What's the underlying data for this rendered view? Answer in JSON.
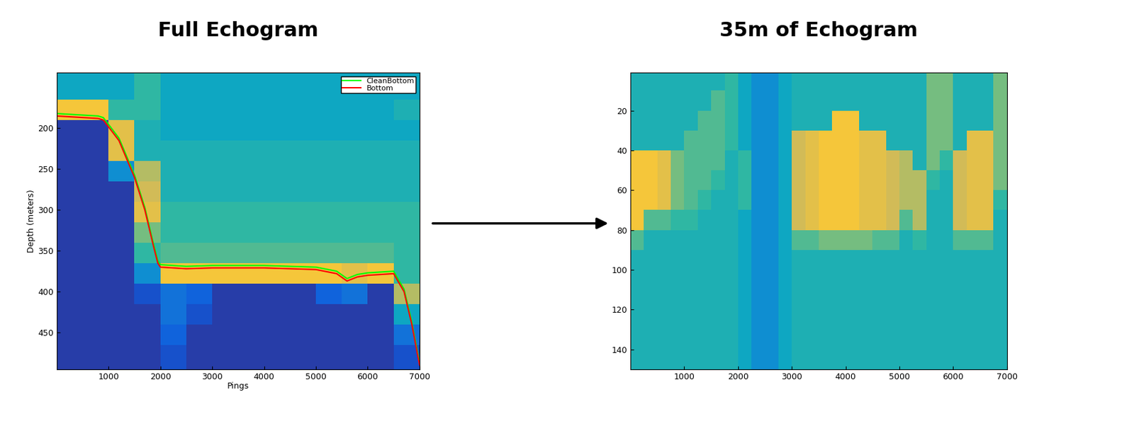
{
  "chart_data": [
    {
      "type": "heatmap",
      "title": "Full Echogram",
      "x_label": "Pings",
      "y_label": "Depth (meters)",
      "xlim": [
        0,
        7000
      ],
      "xticks": [
        1000,
        2000,
        3000,
        4000,
        5000,
        6000,
        7000
      ],
      "ylim": [
        495,
        132
      ],
      "yticks": [
        200,
        250,
        300,
        350,
        400,
        450
      ],
      "x_edges": [
        0,
        500,
        1000,
        1500,
        2000,
        2500,
        3000,
        3500,
        4000,
        4500,
        5000,
        5500,
        6000,
        6500,
        7000
      ],
      "y_edges": [
        132,
        165,
        190,
        215,
        240,
        265,
        290,
        315,
        340,
        365,
        390,
        415,
        440,
        465,
        495
      ],
      "cell_range": [
        0,
        1
      ],
      "cells": [
        [
          0.4,
          0.4,
          0.4,
          0.5,
          0.4,
          0.4,
          0.4,
          0.4,
          0.4,
          0.4,
          0.4,
          0.4,
          0.4,
          0.4
        ],
        [
          0.85,
          0.85,
          0.5,
          0.5,
          0.4,
          0.4,
          0.4,
          0.4,
          0.4,
          0.4,
          0.4,
          0.4,
          0.4,
          0.45
        ],
        [
          0.05,
          0.05,
          0.8,
          0.45,
          0.4,
          0.4,
          0.4,
          0.4,
          0.4,
          0.4,
          0.4,
          0.4,
          0.4,
          0.4
        ],
        [
          0.05,
          0.05,
          0.8,
          0.45,
          0.45,
          0.45,
          0.45,
          0.45,
          0.45,
          0.45,
          0.45,
          0.45,
          0.45,
          0.45
        ],
        [
          0.05,
          0.05,
          0.3,
          0.7,
          0.45,
          0.45,
          0.45,
          0.45,
          0.45,
          0.45,
          0.45,
          0.45,
          0.45,
          0.45
        ],
        [
          0.05,
          0.05,
          0.05,
          0.75,
          0.45,
          0.45,
          0.45,
          0.45,
          0.45,
          0.45,
          0.45,
          0.45,
          0.45,
          0.45
        ],
        [
          0.05,
          0.05,
          0.05,
          0.8,
          0.5,
          0.5,
          0.5,
          0.5,
          0.5,
          0.5,
          0.5,
          0.5,
          0.5,
          0.5
        ],
        [
          0.05,
          0.05,
          0.05,
          0.6,
          0.5,
          0.5,
          0.5,
          0.5,
          0.5,
          0.5,
          0.5,
          0.5,
          0.5,
          0.5
        ],
        [
          0.05,
          0.05,
          0.05,
          0.5,
          0.55,
          0.55,
          0.55,
          0.55,
          0.55,
          0.55,
          0.55,
          0.55,
          0.55,
          0.5
        ],
        [
          0.05,
          0.05,
          0.05,
          0.3,
          0.85,
          0.85,
          0.85,
          0.85,
          0.85,
          0.85,
          0.85,
          0.8,
          0.85,
          0.5
        ],
        [
          0.05,
          0.05,
          0.05,
          0.1,
          0.2,
          0.15,
          0.05,
          0.05,
          0.05,
          0.05,
          0.15,
          0.2,
          0.05,
          0.7
        ],
        [
          0.05,
          0.05,
          0.05,
          0.05,
          0.2,
          0.1,
          0.05,
          0.05,
          0.05,
          0.05,
          0.05,
          0.05,
          0.05,
          0.4
        ],
        [
          0.05,
          0.05,
          0.05,
          0.05,
          0.15,
          0.05,
          0.05,
          0.05,
          0.05,
          0.05,
          0.05,
          0.05,
          0.05,
          0.2
        ],
        [
          0.05,
          0.05,
          0.05,
          0.05,
          0.1,
          0.05,
          0.05,
          0.05,
          0.05,
          0.05,
          0.05,
          0.05,
          0.05,
          0.1
        ]
      ],
      "legend": "upper right",
      "series": [
        {
          "name": "CleanBottom",
          "color": "#00ff00",
          "x": [
            0,
            800,
            900,
            1200,
            1500,
            1700,
            1850,
            1950,
            2000,
            2500,
            3000,
            4000,
            5000,
            5400,
            5600,
            5800,
            6000,
            6500,
            6700,
            6850,
            7000
          ],
          "values": [
            182,
            185,
            187,
            212,
            257,
            297,
            337,
            362,
            367,
            369,
            368,
            368,
            370,
            375,
            384,
            379,
            377,
            375,
            397,
            437,
            487
          ]
        },
        {
          "name": "Bottom",
          "color": "#ff0000",
          "x": [
            0,
            800,
            900,
            1200,
            1500,
            1700,
            1850,
            1950,
            2000,
            2500,
            3000,
            4000,
            5000,
            5400,
            5600,
            5800,
            6000,
            6500,
            6700,
            6850,
            7000
          ],
          "values": [
            185,
            188,
            190,
            215,
            260,
            300,
            340,
            365,
            370,
            372,
            371,
            371,
            373,
            378,
            387,
            382,
            380,
            378,
            400,
            440,
            490
          ]
        }
      ]
    },
    {
      "type": "heatmap",
      "title": "35m of Echogram",
      "xlim": [
        0,
        7000
      ],
      "xticks": [
        1000,
        2000,
        3000,
        4000,
        5000,
        6000,
        7000
      ],
      "ylim": [
        150,
        1
      ],
      "yticks": [
        20,
        40,
        60,
        80,
        100,
        120,
        140
      ],
      "x_edges": [
        0,
        250,
        500,
        750,
        1000,
        1250,
        1500,
        1750,
        2000,
        2250,
        2500,
        2750,
        3000,
        3250,
        3500,
        3750,
        4000,
        4250,
        4500,
        4750,
        5000,
        5250,
        5500,
        5750,
        6000,
        6250,
        6500,
        6750,
        7000
      ],
      "y_edges": [
        1,
        10,
        20,
        30,
        40,
        50,
        60,
        70,
        80,
        90,
        100,
        110,
        120,
        130,
        140,
        150
      ],
      "cell_range": [
        0,
        1
      ],
      "cells": [
        [
          0.45,
          0.45,
          0.45,
          0.45,
          0.45,
          0.45,
          0.45,
          0.5,
          0.4,
          0.3,
          0.3,
          0.4,
          0.45,
          0.45,
          0.45,
          0.45,
          0.45,
          0.45,
          0.45,
          0.45,
          0.45,
          0.45,
          0.6,
          0.6,
          0.45,
          0.45,
          0.45,
          0.6
        ],
        [
          0.45,
          0.45,
          0.45,
          0.45,
          0.45,
          0.45,
          0.55,
          0.5,
          0.4,
          0.3,
          0.3,
          0.4,
          0.45,
          0.45,
          0.45,
          0.45,
          0.45,
          0.45,
          0.45,
          0.45,
          0.45,
          0.45,
          0.6,
          0.6,
          0.45,
          0.45,
          0.45,
          0.6
        ],
        [
          0.45,
          0.45,
          0.45,
          0.45,
          0.45,
          0.55,
          0.55,
          0.5,
          0.4,
          0.3,
          0.3,
          0.4,
          0.45,
          0.45,
          0.45,
          0.85,
          0.85,
          0.45,
          0.45,
          0.45,
          0.45,
          0.45,
          0.6,
          0.6,
          0.45,
          0.45,
          0.45,
          0.6
        ],
        [
          0.45,
          0.45,
          0.45,
          0.45,
          0.55,
          0.55,
          0.55,
          0.5,
          0.4,
          0.3,
          0.3,
          0.4,
          0.75,
          0.8,
          0.85,
          0.85,
          0.85,
          0.8,
          0.8,
          0.45,
          0.45,
          0.45,
          0.6,
          0.6,
          0.45,
          0.8,
          0.8,
          0.6
        ],
        [
          0.85,
          0.85,
          0.8,
          0.6,
          0.55,
          0.55,
          0.55,
          0.45,
          0.5,
          0.3,
          0.3,
          0.4,
          0.75,
          0.8,
          0.85,
          0.85,
          0.85,
          0.8,
          0.8,
          0.75,
          0.7,
          0.45,
          0.6,
          0.5,
          0.75,
          0.8,
          0.8,
          0.6
        ],
        [
          0.85,
          0.85,
          0.8,
          0.6,
          0.55,
          0.55,
          0.5,
          0.45,
          0.5,
          0.3,
          0.3,
          0.4,
          0.75,
          0.8,
          0.85,
          0.85,
          0.85,
          0.8,
          0.8,
          0.75,
          0.7,
          0.7,
          0.5,
          0.45,
          0.75,
          0.8,
          0.8,
          0.6
        ],
        [
          0.85,
          0.85,
          0.8,
          0.6,
          0.55,
          0.5,
          0.45,
          0.45,
          0.5,
          0.3,
          0.3,
          0.4,
          0.75,
          0.8,
          0.85,
          0.85,
          0.85,
          0.8,
          0.8,
          0.75,
          0.7,
          0.7,
          0.45,
          0.45,
          0.75,
          0.8,
          0.8,
          0.5
        ],
        [
          0.85,
          0.55,
          0.55,
          0.5,
          0.5,
          0.45,
          0.45,
          0.45,
          0.4,
          0.3,
          0.3,
          0.4,
          0.75,
          0.8,
          0.85,
          0.85,
          0.85,
          0.8,
          0.8,
          0.75,
          0.55,
          0.7,
          0.45,
          0.45,
          0.75,
          0.8,
          0.8,
          0.45
        ],
        [
          0.55,
          0.45,
          0.45,
          0.45,
          0.45,
          0.45,
          0.45,
          0.45,
          0.4,
          0.3,
          0.3,
          0.4,
          0.55,
          0.55,
          0.6,
          0.6,
          0.6,
          0.6,
          0.55,
          0.55,
          0.45,
          0.5,
          0.45,
          0.45,
          0.55,
          0.55,
          0.55,
          0.45
        ],
        [
          0.45,
          0.45,
          0.45,
          0.45,
          0.45,
          0.45,
          0.45,
          0.45,
          0.4,
          0.3,
          0.3,
          0.4,
          0.45,
          0.45,
          0.45,
          0.45,
          0.45,
          0.45,
          0.45,
          0.45,
          0.45,
          0.45,
          0.45,
          0.45,
          0.45,
          0.45,
          0.45,
          0.45
        ],
        [
          0.45,
          0.45,
          0.45,
          0.45,
          0.45,
          0.45,
          0.45,
          0.45,
          0.4,
          0.3,
          0.3,
          0.4,
          0.45,
          0.45,
          0.45,
          0.45,
          0.45,
          0.45,
          0.45,
          0.45,
          0.45,
          0.45,
          0.45,
          0.45,
          0.45,
          0.45,
          0.45,
          0.45
        ],
        [
          0.45,
          0.45,
          0.45,
          0.45,
          0.45,
          0.45,
          0.45,
          0.45,
          0.4,
          0.3,
          0.3,
          0.4,
          0.45,
          0.45,
          0.45,
          0.45,
          0.45,
          0.45,
          0.45,
          0.45,
          0.45,
          0.45,
          0.45,
          0.45,
          0.45,
          0.45,
          0.45,
          0.45
        ],
        [
          0.45,
          0.45,
          0.45,
          0.45,
          0.45,
          0.45,
          0.45,
          0.45,
          0.4,
          0.3,
          0.3,
          0.4,
          0.45,
          0.45,
          0.45,
          0.45,
          0.45,
          0.45,
          0.45,
          0.45,
          0.45,
          0.45,
          0.45,
          0.45,
          0.45,
          0.45,
          0.45,
          0.45
        ],
        [
          0.45,
          0.45,
          0.45,
          0.45,
          0.45,
          0.45,
          0.45,
          0.45,
          0.4,
          0.3,
          0.3,
          0.4,
          0.45,
          0.45,
          0.45,
          0.45,
          0.45,
          0.45,
          0.45,
          0.45,
          0.45,
          0.45,
          0.45,
          0.45,
          0.45,
          0.45,
          0.45,
          0.45
        ],
        [
          0.45,
          0.45,
          0.45,
          0.45,
          0.45,
          0.45,
          0.45,
          0.45,
          0.4,
          0.3,
          0.3,
          0.4,
          0.45,
          0.45,
          0.45,
          0.45,
          0.45,
          0.45,
          0.45,
          0.45,
          0.45,
          0.45,
          0.45,
          0.45,
          0.45,
          0.45,
          0.45,
          0.45
        ]
      ]
    }
  ]
}
